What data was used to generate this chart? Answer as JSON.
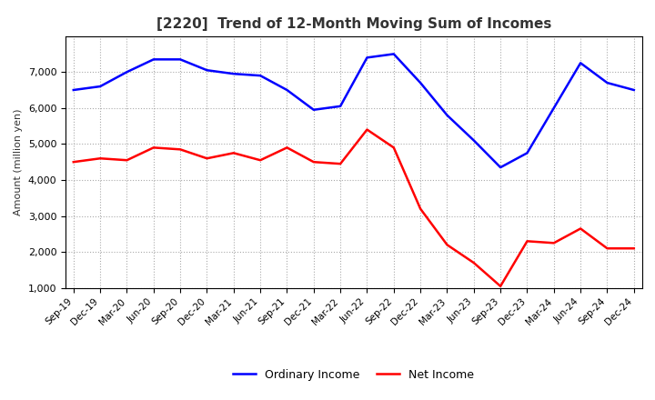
{
  "title": "[2220]  Trend of 12-Month Moving Sum of Incomes",
  "ylabel": "Amount (million yen)",
  "x_labels": [
    "Sep-19",
    "Dec-19",
    "Mar-20",
    "Jun-20",
    "Sep-20",
    "Dec-20",
    "Mar-21",
    "Jun-21",
    "Sep-21",
    "Dec-21",
    "Mar-22",
    "Jun-22",
    "Sep-22",
    "Dec-22",
    "Mar-23",
    "Jun-23",
    "Sep-23",
    "Dec-23",
    "Mar-24",
    "Jun-24",
    "Sep-24",
    "Dec-24"
  ],
  "ordinary_income": [
    6500,
    6600,
    7000,
    7350,
    7350,
    7050,
    6950,
    6900,
    6500,
    5950,
    6050,
    7400,
    7500,
    6700,
    5800,
    5100,
    4350,
    4750,
    6000,
    7250,
    6700,
    6500
  ],
  "net_income": [
    4500,
    4600,
    4550,
    4900,
    4850,
    4600,
    4750,
    4550,
    4900,
    4500,
    4450,
    5400,
    4900,
    3200,
    2200,
    1700,
    1050,
    2300,
    2250,
    2650,
    2100,
    2100
  ],
  "ordinary_color": "#0000ff",
  "net_color": "#ff0000",
  "ylim_min": 1000,
  "ylim_max": 8000,
  "yticks": [
    1000,
    2000,
    3000,
    4000,
    5000,
    6000,
    7000
  ],
  "background_color": "#ffffff",
  "grid_color": "#aaaaaa",
  "line_width": 1.8,
  "title_color": "#333333"
}
